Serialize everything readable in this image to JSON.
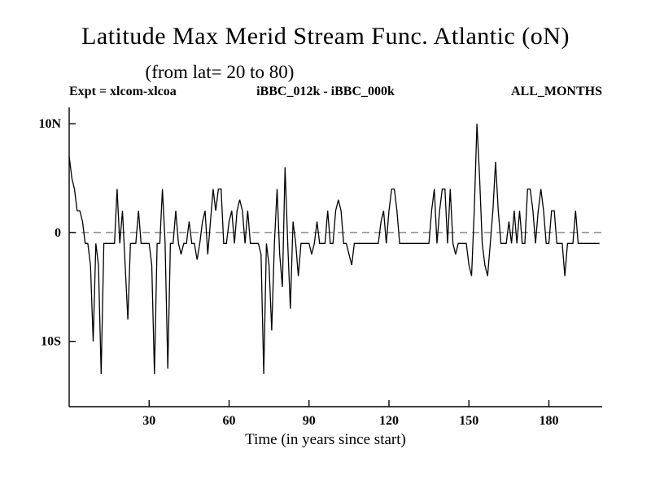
{
  "page": {
    "title": "Latitude Max Merid Stream Func. Atlantic (oN)",
    "subtitle": "(from lat= 20 to 80)",
    "expt_label": "Expt = xlcom-xlcoa",
    "diff_label": "iBBC_012k - iBBC_000k",
    "months_label": "ALL_MONTHS"
  },
  "chart_data": {
    "type": "line",
    "title": "Latitude Max Merid Stream Func. Atlantic (oN)",
    "subtitle": "(from lat= 20 to 80)",
    "annotations": [
      "Expt = xlcom-xlcoa",
      "iBBC_012k - iBBC_000k",
      "ALL_MONTHS"
    ],
    "xlabel": "Time (in years since start)",
    "ylabel": "",
    "xlim": [
      0,
      200
    ],
    "ylim": [
      -16,
      11.5
    ],
    "x_ticks": [
      30,
      60,
      90,
      120,
      150,
      180
    ],
    "y_ticks": [
      {
        "value": 10,
        "label": "10N"
      },
      {
        "value": 0,
        "label": "0"
      },
      {
        "value": -10,
        "label": "10S"
      }
    ],
    "grid": false,
    "legend": "none",
    "zero_line": {
      "value": 0,
      "style": "dashed"
    },
    "line_color": "#000000",
    "zero_line_color": "#555555",
    "x_start": 0,
    "x_step": 1,
    "values": [
      7,
      5,
      4,
      2,
      2,
      1,
      -1,
      -1,
      -3,
      -10,
      -1,
      -3,
      -13,
      -1,
      -1,
      -1,
      -1,
      -1,
      4,
      -1,
      2,
      -3,
      -8,
      -1,
      -1,
      -1,
      2,
      -1,
      -1,
      -1,
      -1,
      -3,
      -13,
      -1,
      -1,
      4,
      -1,
      -12.5,
      -1,
      -1,
      2,
      -1,
      -2,
      -1,
      -1,
      1,
      -1,
      -1,
      -2.5,
      -1,
      1,
      2,
      -2,
      1,
      4,
      2,
      4,
      4,
      -1,
      -1,
      1,
      2,
      -1,
      2,
      3,
      2,
      -1,
      2,
      -1,
      -1,
      -1,
      -1,
      -2,
      -13,
      -1,
      -3,
      -9,
      -1,
      4,
      -2,
      -5,
      6,
      -1,
      -7,
      1,
      -1,
      -4,
      -1,
      -1,
      -1,
      -1,
      -2,
      -1,
      1,
      -1,
      -1,
      -1,
      2,
      -1,
      -1,
      2,
      3,
      2,
      -1,
      -1,
      -2,
      -3,
      -1,
      -1,
      -1,
      -1,
      -1,
      -1,
      -1,
      -1,
      -1,
      -1,
      1,
      2,
      -1,
      2,
      4,
      4,
      2,
      -1,
      -1,
      -1,
      -1,
      -1,
      -1,
      -1,
      -1,
      -1,
      -1,
      -1,
      -1,
      2,
      4,
      -1,
      2,
      4,
      4,
      -1,
      4,
      -1,
      -2,
      -1,
      -1,
      -1,
      -1,
      -3,
      -4,
      2,
      10,
      5,
      -1,
      -3,
      -4,
      -1,
      2,
      6.5,
      2,
      -1,
      -1,
      -1,
      1,
      -1,
      2,
      -1,
      2,
      -1,
      -1,
      4,
      4,
      2,
      -1,
      2,
      4,
      2,
      -1,
      -1,
      2,
      2,
      -1,
      -1,
      -1,
      -4,
      -1,
      -1,
      -1,
      2,
      -1,
      -1,
      -1,
      -1,
      -1,
      -1,
      -1,
      -1,
      -1
    ]
  }
}
